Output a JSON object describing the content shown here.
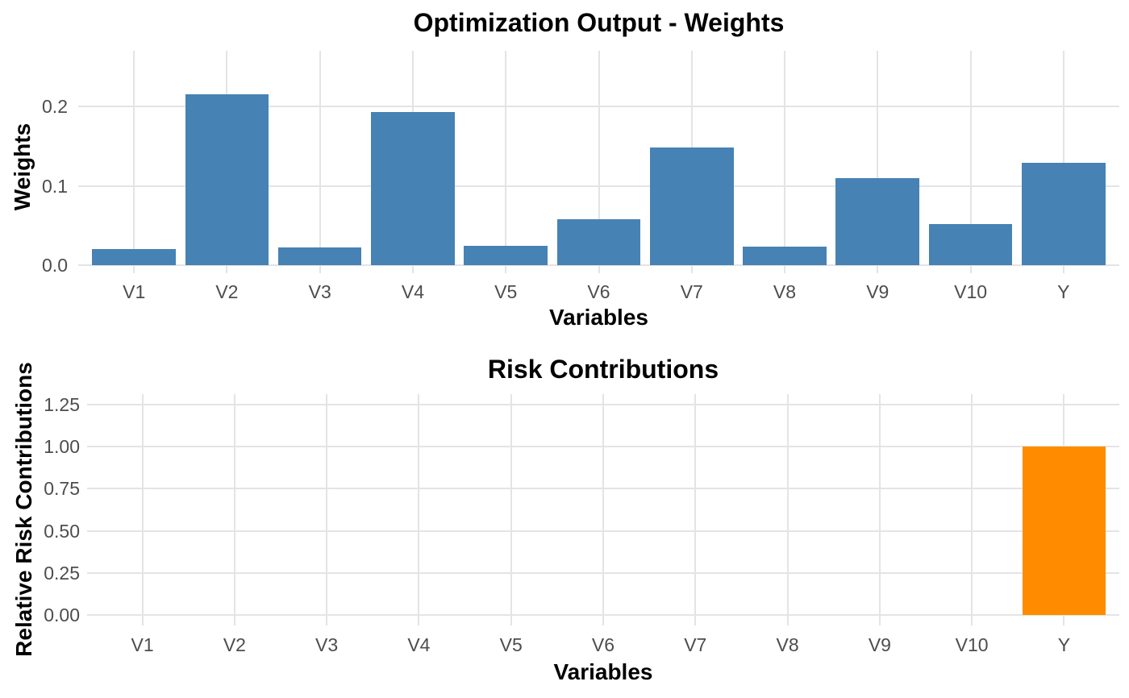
{
  "figure": {
    "background": "#FFFFFF"
  },
  "styles": {
    "bar_blue": "#4682B4",
    "bar_orange": "#FF8C00",
    "grid_color": "#E4E4E4",
    "tick_label_color": "#4D4D4D",
    "title_color": "#000000"
  },
  "chart_data": [
    {
      "type": "bar",
      "title": "Optimization Output - Weights",
      "xlabel": "Variables",
      "ylabel": "Weights",
      "categories": [
        "V1",
        "V2",
        "V3",
        "V4",
        "V5",
        "V6",
        "V7",
        "V8",
        "V9",
        "V10",
        "Y"
      ],
      "values": [
        0.02,
        0.215,
        0.023,
        0.193,
        0.025,
        0.058,
        0.148,
        0.024,
        0.11,
        0.052,
        0.129
      ],
      "bar_color": "#4682B4",
      "yticks": [
        0,
        0.1,
        0.2
      ],
      "ytick_labels": [
        "0.0",
        "0.1",
        "0.2"
      ],
      "ylim": [
        0,
        0.27
      ],
      "grid": true,
      "legend": "none"
    },
    {
      "type": "bar",
      "title": "Risk Contributions",
      "xlabel": "Variables",
      "ylabel": "Relative Risk Contributions",
      "categories": [
        "V1",
        "V2",
        "V3",
        "V4",
        "V5",
        "V6",
        "V7",
        "V8",
        "V9",
        "V10",
        "Y"
      ],
      "values": [
        0,
        0,
        0,
        0,
        0,
        0,
        0,
        0,
        0,
        0,
        1.0
      ],
      "bar_color": "#FF8C00",
      "yticks": [
        0,
        0.25,
        0.5,
        0.75,
        1.0,
        1.25
      ],
      "ytick_labels": [
        "0.00",
        "0.25",
        "0.50",
        "0.75",
        "1.00",
        "1.25"
      ],
      "ylim": [
        0,
        1.3125
      ],
      "grid": true,
      "legend": "none"
    }
  ]
}
